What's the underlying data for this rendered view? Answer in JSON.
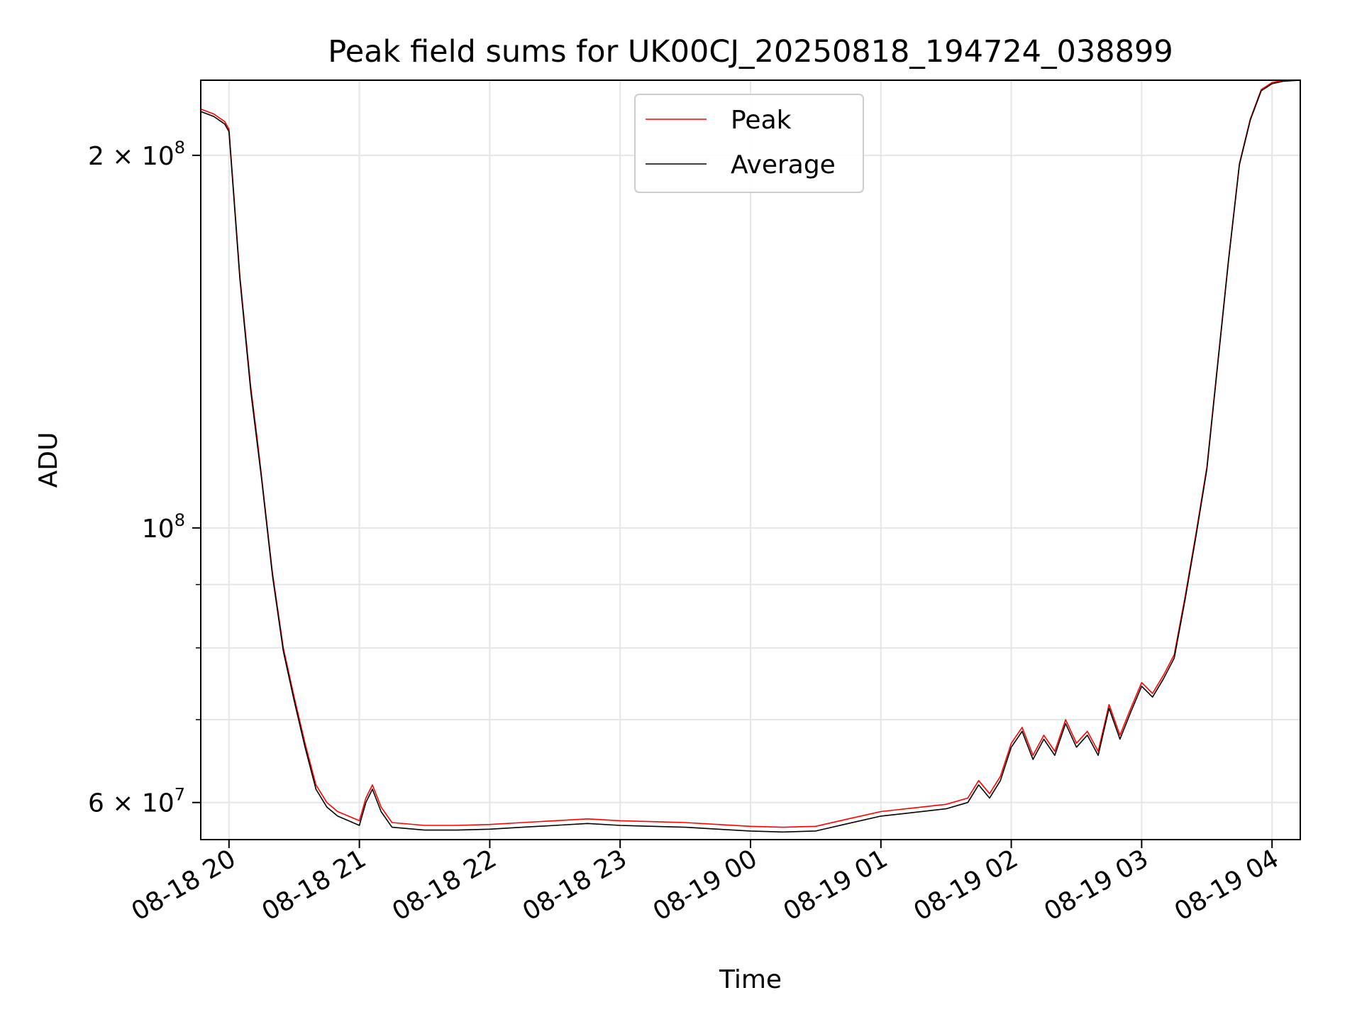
{
  "chart_data": {
    "type": "line",
    "title": "Peak field sums for UK00CJ_20250818_194724_038899",
    "xlabel": "Time",
    "ylabel": "ADU",
    "yscale": "log",
    "grid": true,
    "legend_position": "top-center",
    "xlim": [
      "2025-08-18 19:47",
      "2025-08-19 04:13"
    ],
    "ylim": [
      56000000,
      230000000
    ],
    "x_tick_labels": [
      "08-18 20",
      "08-18 21",
      "08-18 22",
      "08-18 23",
      "08-19 00",
      "08-19 01",
      "08-19 02",
      "08-19 03",
      "08-19 04"
    ],
    "x_ticks": [
      "2025-08-18 20:00",
      "2025-08-18 21:00",
      "2025-08-18 22:00",
      "2025-08-18 23:00",
      "2025-08-19 00:00",
      "2025-08-19 01:00",
      "2025-08-19 02:00",
      "2025-08-19 03:00",
      "2025-08-19 04:00"
    ],
    "y_ticks": [
      {
        "value": 60000000,
        "base": "6 × 10",
        "exp": "7"
      },
      {
        "value": 100000000,
        "base": "10",
        "exp": "8"
      },
      {
        "value": 200000000,
        "base": "2 × 10",
        "exp": "8"
      }
    ],
    "y_minor_ticks": [
      70000000,
      80000000,
      90000000
    ],
    "series": [
      {
        "name": "Peak",
        "color": "#ff0000",
        "x": [
          "2025-08-18 19:47",
          "2025-08-18 19:53",
          "2025-08-18 19:58",
          "2025-08-18 20:00",
          "2025-08-18 20:05",
          "2025-08-18 20:10",
          "2025-08-18 20:13",
          "2025-08-18 20:15",
          "2025-08-18 20:20",
          "2025-08-18 20:25",
          "2025-08-18 20:30",
          "2025-08-18 20:35",
          "2025-08-18 20:40",
          "2025-08-18 20:45",
          "2025-08-18 20:50",
          "2025-08-18 20:55",
          "2025-08-18 21:00",
          "2025-08-18 21:03",
          "2025-08-18 21:06",
          "2025-08-18 21:10",
          "2025-08-18 21:15",
          "2025-08-18 21:30",
          "2025-08-18 21:45",
          "2025-08-18 22:00",
          "2025-08-18 22:15",
          "2025-08-18 22:30",
          "2025-08-18 22:45",
          "2025-08-18 23:00",
          "2025-08-18 23:15",
          "2025-08-18 23:30",
          "2025-08-18 23:45",
          "2025-08-19 00:00",
          "2025-08-19 00:15",
          "2025-08-19 00:30",
          "2025-08-19 00:45",
          "2025-08-19 01:00",
          "2025-08-19 01:15",
          "2025-08-19 01:30",
          "2025-08-19 01:40",
          "2025-08-19 01:45",
          "2025-08-19 01:50",
          "2025-08-19 01:55",
          "2025-08-19 02:00",
          "2025-08-19 02:05",
          "2025-08-19 02:10",
          "2025-08-19 02:15",
          "2025-08-19 02:20",
          "2025-08-19 02:25",
          "2025-08-19 02:30",
          "2025-08-19 02:35",
          "2025-08-19 02:40",
          "2025-08-19 02:45",
          "2025-08-19 02:50",
          "2025-08-19 02:55",
          "2025-08-19 03:00",
          "2025-08-19 03:05",
          "2025-08-19 03:10",
          "2025-08-19 03:15",
          "2025-08-19 03:20",
          "2025-08-19 03:25",
          "2025-08-19 03:30",
          "2025-08-19 03:35",
          "2025-08-19 03:40",
          "2025-08-19 03:45",
          "2025-08-19 03:50",
          "2025-08-19 03:55",
          "2025-08-19 04:00",
          "2025-08-19 04:05",
          "2025-08-19 04:13"
        ],
        "values": [
          218000000,
          216000000,
          213000000,
          210000000,
          160000000,
          130000000,
          118000000,
          110000000,
          92000000,
          80000000,
          73000000,
          67000000,
          62000000,
          60000000,
          59000000,
          58500000,
          58000000,
          60500000,
          62000000,
          59500000,
          57800000,
          57500000,
          57500000,
          57600000,
          57800000,
          58000000,
          58200000,
          58000000,
          57900000,
          57800000,
          57600000,
          57400000,
          57300000,
          57400000,
          58200000,
          59000000,
          59400000,
          59800000,
          60500000,
          62500000,
          61000000,
          63000000,
          67000000,
          69000000,
          65500000,
          68000000,
          66000000,
          70000000,
          67000000,
          68500000,
          66000000,
          72000000,
          68000000,
          71500000,
          75000000,
          73500000,
          76000000,
          79000000,
          88000000,
          99000000,
          112000000,
          136000000,
          165000000,
          197000000,
          214000000,
          226000000,
          229000000,
          230000000,
          230000000
        ]
      },
      {
        "name": "Average",
        "color": "#000000",
        "x": [
          "2025-08-18 19:47",
          "2025-08-18 19:53",
          "2025-08-18 19:58",
          "2025-08-18 20:00",
          "2025-08-18 20:05",
          "2025-08-18 20:10",
          "2025-08-18 20:13",
          "2025-08-18 20:15",
          "2025-08-18 20:20",
          "2025-08-18 20:25",
          "2025-08-18 20:30",
          "2025-08-18 20:35",
          "2025-08-18 20:40",
          "2025-08-18 20:45",
          "2025-08-18 20:50",
          "2025-08-18 20:55",
          "2025-08-18 21:00",
          "2025-08-18 21:03",
          "2025-08-18 21:06",
          "2025-08-18 21:10",
          "2025-08-18 21:15",
          "2025-08-18 21:30",
          "2025-08-18 21:45",
          "2025-08-18 22:00",
          "2025-08-18 22:15",
          "2025-08-18 22:30",
          "2025-08-18 22:45",
          "2025-08-18 23:00",
          "2025-08-18 23:15",
          "2025-08-18 23:30",
          "2025-08-18 23:45",
          "2025-08-19 00:00",
          "2025-08-19 00:15",
          "2025-08-19 00:30",
          "2025-08-19 00:45",
          "2025-08-19 01:00",
          "2025-08-19 01:15",
          "2025-08-19 01:30",
          "2025-08-19 01:40",
          "2025-08-19 01:45",
          "2025-08-19 01:50",
          "2025-08-19 01:55",
          "2025-08-19 02:00",
          "2025-08-19 02:05",
          "2025-08-19 02:10",
          "2025-08-19 02:15",
          "2025-08-19 02:20",
          "2025-08-19 02:25",
          "2025-08-19 02:30",
          "2025-08-19 02:35",
          "2025-08-19 02:40",
          "2025-08-19 02:45",
          "2025-08-19 02:50",
          "2025-08-19 02:55",
          "2025-08-19 03:00",
          "2025-08-19 03:05",
          "2025-08-19 03:10",
          "2025-08-19 03:15",
          "2025-08-19 03:20",
          "2025-08-19 03:25",
          "2025-08-19 03:30",
          "2025-08-19 03:35",
          "2025-08-19 03:40",
          "2025-08-19 03:45",
          "2025-08-19 03:50",
          "2025-08-19 03:55",
          "2025-08-19 04:00",
          "2025-08-19 04:05",
          "2025-08-19 04:13"
        ],
        "values": [
          217000000,
          215000000,
          212000000,
          209000000,
          159000000,
          129000000,
          117000000,
          109500000,
          91500000,
          79500000,
          72500000,
          66500000,
          61500000,
          59500000,
          58500000,
          58000000,
          57500000,
          60000000,
          61500000,
          59000000,
          57300000,
          57000000,
          57000000,
          57100000,
          57300000,
          57500000,
          57700000,
          57500000,
          57400000,
          57300000,
          57100000,
          56900000,
          56800000,
          56900000,
          57700000,
          58500000,
          58900000,
          59300000,
          60000000,
          62000000,
          60500000,
          62500000,
          66500000,
          68500000,
          65000000,
          67500000,
          65500000,
          69500000,
          66500000,
          68000000,
          65500000,
          71500000,
          67500000,
          71000000,
          74500000,
          73000000,
          75500000,
          78500000,
          87500000,
          98500000,
          111500000,
          135500000,
          164500000,
          196500000,
          213500000,
          225500000,
          228500000,
          229500000,
          230000000
        ]
      }
    ]
  }
}
